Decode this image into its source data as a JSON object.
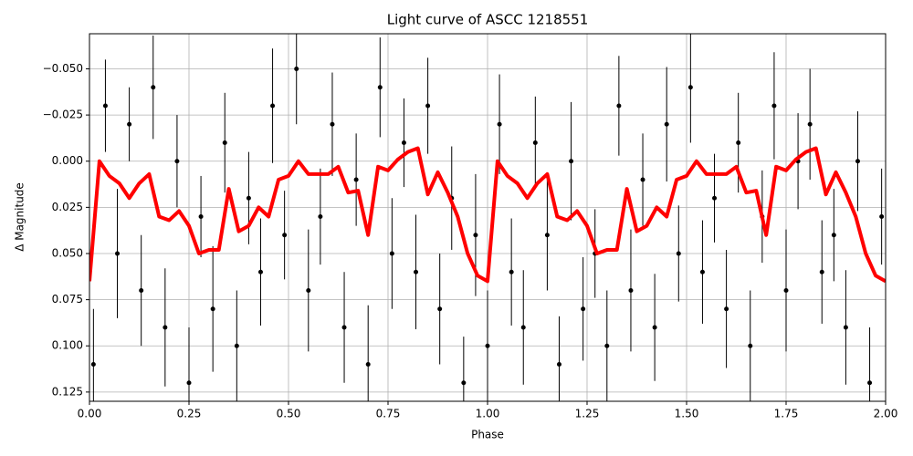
{
  "chart_data": {
    "type": "scatter",
    "title": "Light curve of ASCC 1218551",
    "x_label": "Phase",
    "y_label": "Δ Magnitude",
    "xlim": [
      0,
      2
    ],
    "ylim": [
      0.13,
      -0.069
    ],
    "grid": true,
    "xticks": [
      {
        "value": 0,
        "label": "0.00"
      },
      {
        "value": 0.25,
        "label": "0.25"
      },
      {
        "value": 0.5,
        "label": "0.50"
      },
      {
        "value": 0.75,
        "label": "0.75"
      },
      {
        "value": 1,
        "label": "1.00"
      },
      {
        "value": 1.25,
        "label": "1.25"
      },
      {
        "value": 1.5,
        "label": "1.50"
      },
      {
        "value": 1.75,
        "label": "1.75"
      },
      {
        "value": 2,
        "label": "2.00"
      }
    ],
    "yticks": [
      {
        "value": -0.05,
        "label": "−0.050"
      },
      {
        "value": -0.025,
        "label": "−0.025"
      },
      {
        "value": 0,
        "label": "0.000"
      },
      {
        "value": 0.025,
        "label": "0.025"
      },
      {
        "value": 0.05,
        "label": "0.050"
      },
      {
        "value": 0.075,
        "label": "0.075"
      },
      {
        "value": 0.1,
        "label": "0.100"
      },
      {
        "value": 0.125,
        "label": "0.125"
      }
    ],
    "series": [
      {
        "type": "errorbar",
        "color": "#000000",
        "x": [
          0.01,
          0.04,
          0.07,
          0.1,
          0.13,
          0.16,
          0.19,
          0.22,
          0.25,
          0.28,
          0.31,
          0.34,
          0.37,
          0.4,
          0.43,
          0.46,
          0.49,
          0.52,
          0.55,
          0.58,
          0.61,
          0.64,
          0.67,
          0.7,
          0.73,
          0.76,
          0.79,
          0.82,
          0.85,
          0.88,
          0.91,
          0.94,
          0.97,
          1.0,
          1.03,
          1.06,
          1.09,
          1.12,
          1.15,
          1.18,
          1.21,
          1.24,
          1.27,
          1.3,
          1.33,
          1.36,
          1.39,
          1.42,
          1.45,
          1.48,
          1.51,
          1.54,
          1.57,
          1.6,
          1.63,
          1.66,
          1.69,
          1.72,
          1.75,
          1.78,
          1.81,
          1.84,
          1.87,
          1.9,
          1.93,
          1.96,
          1.99
        ],
        "values": [
          0.11,
          -0.03,
          0.05,
          -0.02,
          0.07,
          -0.04,
          0.09,
          0.0,
          0.12,
          0.03,
          0.08,
          -0.01,
          0.1,
          0.02,
          0.06,
          -0.03,
          0.04,
          -0.05,
          0.07,
          0.03,
          -0.02,
          0.09,
          0.01,
          0.11,
          -0.04,
          0.05,
          -0.01,
          0.06,
          -0.03,
          0.08,
          0.02,
          0.12,
          0.04,
          0.1,
          -0.02,
          0.06,
          0.09,
          -0.01,
          0.04,
          0.11,
          0.0,
          0.08,
          0.05,
          0.1,
          -0.03,
          0.07,
          0.01,
          0.09,
          -0.02,
          0.05,
          -0.04,
          0.06,
          0.02,
          0.08,
          -0.01,
          0.1,
          0.03,
          -0.03,
          0.07,
          0.0,
          -0.02,
          0.06,
          0.04,
          0.09,
          0.0,
          0.12,
          0.03
        ],
        "errors": [
          0.03,
          0.025,
          0.035,
          0.02,
          0.03,
          0.028,
          0.032,
          0.025,
          0.03,
          0.022,
          0.034,
          0.027,
          0.03,
          0.025,
          0.029,
          0.031,
          0.024,
          0.03,
          0.033,
          0.026,
          0.028,
          0.03,
          0.025,
          0.032,
          0.027,
          0.03,
          0.024,
          0.031,
          0.026,
          0.03,
          0.028,
          0.025,
          0.033,
          0.03,
          0.027,
          0.029,
          0.031,
          0.025,
          0.03,
          0.026,
          0.032,
          0.028,
          0.024,
          0.03,
          0.027,
          0.033,
          0.025,
          0.029,
          0.031,
          0.026,
          0.03,
          0.028,
          0.024,
          0.032,
          0.027,
          0.03,
          0.025,
          0.029,
          0.033,
          0.026,
          0.03,
          0.028,
          0.025,
          0.031,
          0.027,
          0.03,
          0.026
        ]
      },
      {
        "type": "line",
        "color": "#ff0000",
        "x": [
          0,
          0.025,
          0.05,
          0.075,
          0.1,
          0.125,
          0.15,
          0.175,
          0.2,
          0.225,
          0.25,
          0.275,
          0.3,
          0.325,
          0.35,
          0.375,
          0.4,
          0.425,
          0.45,
          0.475,
          0.5,
          0.525,
          0.55,
          0.575,
          0.6,
          0.625,
          0.65,
          0.675,
          0.7,
          0.725,
          0.75,
          0.775,
          0.8,
          0.825,
          0.85,
          0.875,
          0.9,
          0.925,
          0.95,
          0.975,
          1.0,
          1.025,
          1.05,
          1.075,
          1.1,
          1.125,
          1.15,
          1.175,
          1.2,
          1.225,
          1.25,
          1.275,
          1.3,
          1.325,
          1.35,
          1.375,
          1.4,
          1.425,
          1.45,
          1.475,
          1.5,
          1.525,
          1.55,
          1.575,
          1.6,
          1.625,
          1.65,
          1.675,
          1.7,
          1.725,
          1.75,
          1.775,
          1.8,
          1.825,
          1.85,
          1.875,
          1.9,
          1.925,
          1.95,
          1.975,
          2.0
        ],
        "values": [
          0.065,
          0.0,
          0.008,
          0.012,
          0.02,
          0.012,
          0.007,
          0.03,
          0.032,
          0.027,
          0.035,
          0.05,
          0.048,
          0.048,
          0.015,
          0.038,
          0.035,
          0.025,
          0.03,
          0.01,
          0.008,
          0.0,
          0.007,
          0.007,
          0.007,
          0.003,
          0.017,
          0.016,
          0.04,
          0.003,
          0.005,
          -0.001,
          -0.005,
          -0.007,
          0.018,
          0.006,
          0.017,
          0.03,
          0.05,
          0.062,
          0.065,
          0.0,
          0.008,
          0.012,
          0.02,
          0.012,
          0.007,
          0.03,
          0.032,
          0.027,
          0.035,
          0.05,
          0.048,
          0.048,
          0.015,
          0.038,
          0.035,
          0.025,
          0.03,
          0.01,
          0.008,
          0.0,
          0.007,
          0.007,
          0.007,
          0.003,
          0.017,
          0.016,
          0.04,
          0.003,
          0.005,
          -0.001,
          -0.005,
          -0.007,
          0.018,
          0.006,
          0.017,
          0.03,
          0.05,
          0.062,
          0.065
        ]
      }
    ]
  }
}
